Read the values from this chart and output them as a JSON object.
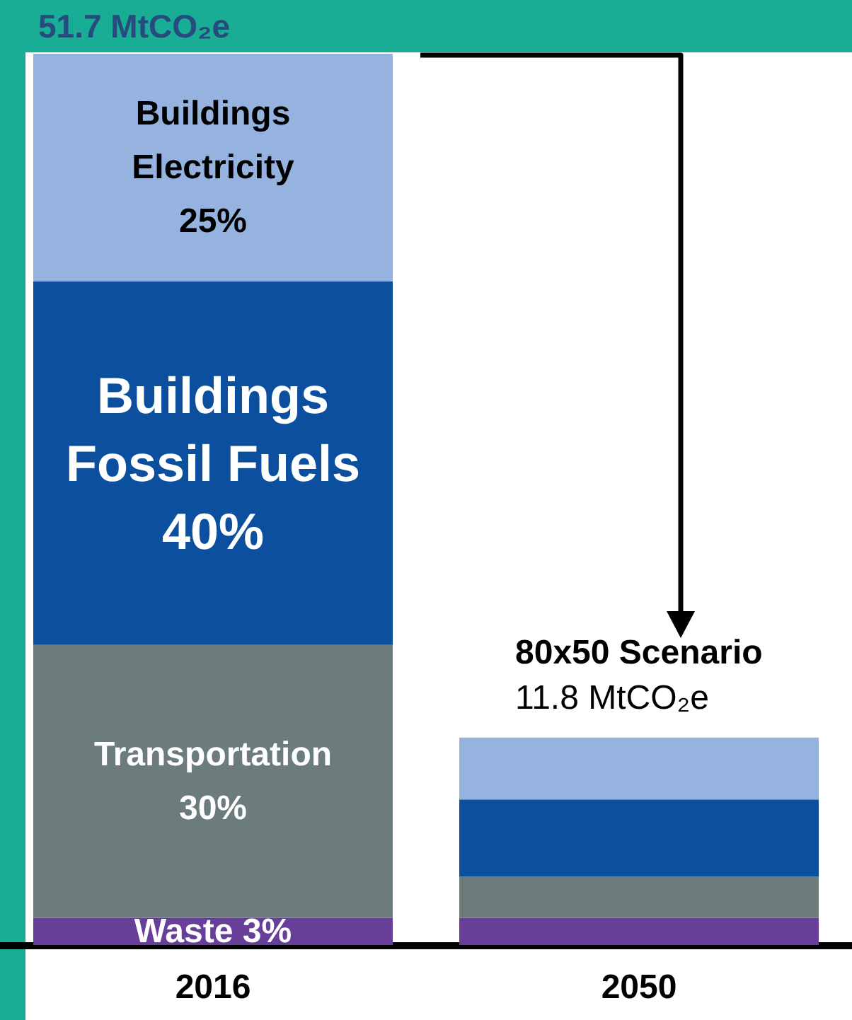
{
  "chart_data": {
    "type": "bar",
    "title": "51.7 MtCO₂e",
    "stacked": true,
    "categories": [
      "2016",
      "2050"
    ],
    "series": [
      {
        "name": "Waste",
        "color": "#673f98",
        "values": [
          3,
          3.0
        ],
        "value_labels": [
          "3%",
          null
        ]
      },
      {
        "name": "Transportation",
        "color": "#6c7b7b",
        "values": [
          30,
          4.5
        ],
        "value_labels": [
          "30%",
          null
        ]
      },
      {
        "name": "Buildings\nFossil Fuels",
        "color": "#0b4f9e",
        "values": [
          40,
          8.5
        ],
        "value_labels": [
          "40%",
          null
        ]
      },
      {
        "name": "Buildings\nElectricity",
        "color": "#95b3de",
        "values": [
          25,
          6.8
        ],
        "value_labels": [
          "25%",
          null
        ]
      }
    ],
    "annotations": [
      "80x50 Scenario",
      "11.8 MtCO₂e"
    ],
    "grid": false,
    "legend": false,
    "tick_labels": "x"
  }
}
